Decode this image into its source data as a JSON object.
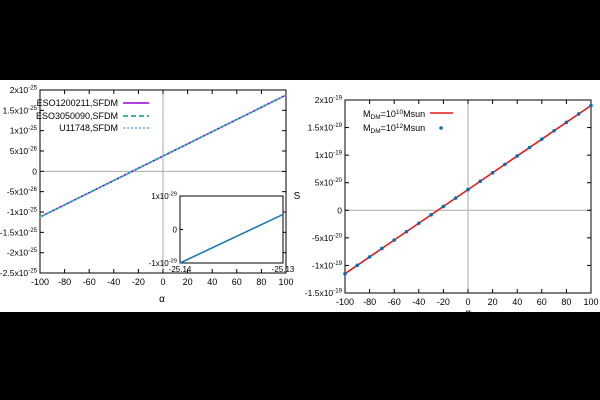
{
  "chart_data": [
    {
      "type": "line",
      "xlabel": "α",
      "ylabel": "",
      "xlim": [
        -100,
        100
      ],
      "ylim": [
        -2.5e-25,
        2e-25
      ],
      "xticks": [
        -100,
        -80,
        -60,
        -40,
        -20,
        0,
        20,
        40,
        60,
        80,
        100
      ],
      "xtick_labels": [
        "-100",
        "-80",
        "-60",
        "-40",
        "-20",
        "0",
        "20",
        "40",
        "60",
        "80",
        "100"
      ],
      "yticks": [
        -2.5e-25,
        -2e-25,
        -1.5e-25,
        -1e-25,
        -5e-26,
        0,
        5e-26,
        1e-25,
        1.5e-25,
        2e-25
      ],
      "ytick_labels": [
        "-2.5x10^-25",
        "-2x10^-25",
        "-1.5x10^-25",
        "-1x10^-25",
        "-5x10^-26",
        "0",
        "5x10^-26",
        "1x10^-25",
        "1.5x10^-25",
        "2x10^-25"
      ],
      "grid": false,
      "zero_lines": true,
      "legend_position": "top-left",
      "series": [
        {
          "name": "ESO1200211,SFDM",
          "style": "solid",
          "color": "#9400d3",
          "x": [
            -100,
            100
          ],
          "y": [
            -1.125e-25,
            1.875e-25
          ]
        },
        {
          "name": "ESO3050090,SFDM",
          "style": "dashed",
          "color": "#009e73",
          "x": [
            -100,
            100
          ],
          "y": [
            -1.125e-25,
            1.875e-25
          ]
        },
        {
          "name": "U11748,SFDM",
          "style": "dotted",
          "color": "#56b4e9",
          "x": [
            -100,
            100
          ],
          "y": [
            -1.125e-25,
            1.875e-25
          ]
        }
      ],
      "inset": {
        "xlim": [
          -25.14,
          -25.13
        ],
        "ylim": [
          -1e-29,
          1e-29
        ],
        "xtick_labels": [
          "-25.14",
          "-25.13"
        ],
        "ytick_labels": [
          "1x10^-29",
          "0",
          "-1x10^-29"
        ],
        "yticks": [
          1e-29,
          0,
          -1e-29
        ],
        "x": [
          -25.14,
          -25.13
        ],
        "y": [
          -1e-29,
          4.5e-30
        ]
      }
    },
    {
      "type": "line",
      "xlabel": "α",
      "ylabel": "S",
      "xlim": [
        -100,
        100
      ],
      "ylim": [
        -1.5e-19,
        2e-19
      ],
      "xticks": [
        -100,
        -80,
        -60,
        -40,
        -20,
        0,
        20,
        40,
        60,
        80,
        100
      ],
      "xtick_labels": [
        "-100",
        "-80",
        "-60",
        "-40",
        "-20",
        "0",
        "20",
        "40",
        "60",
        "80",
        "100"
      ],
      "yticks": [
        -1.5e-19,
        -1e-19,
        -5e-20,
        0,
        5e-20,
        1e-19,
        1.5e-19,
        2e-19
      ],
      "ytick_labels": [
        "-1.5x10^-19",
        "-1x10^-19",
        "-5x10^-20",
        "0",
        "5x10^-20",
        "1x10^-19",
        "1.5x10^-19",
        "2x10^-19"
      ],
      "grid": false,
      "zero_lines": true,
      "legend_position": "top-left",
      "series": [
        {
          "name": "M_DM=10^10 Msun",
          "style": "solid",
          "color": "#e41a1c",
          "x": [
            -100,
            100
          ],
          "y": [
            -1.15e-19,
            1.9e-19
          ]
        },
        {
          "name": "M_DM=10^12 Msun",
          "style": "points",
          "color": "#0072b2",
          "x": [
            -100,
            -90,
            -80,
            -70,
            -60,
            -50,
            -40,
            -30,
            -20,
            -10,
            0,
            10,
            20,
            30,
            40,
            50,
            60,
            70,
            80,
            90,
            100
          ],
          "y": [
            -1.15e-19,
            -9.975e-20,
            -8.45e-20,
            -6.925e-20,
            -5.4e-20,
            -3.875e-20,
            -2.35e-20,
            -8.25e-21,
            7e-21,
            2.225e-20,
            3.75e-20,
            5.275e-20,
            6.8e-20,
            8.325e-20,
            9.85e-20,
            1.1375e-19,
            1.29e-19,
            1.4425e-19,
            1.595e-19,
            1.7475e-19,
            1.9e-19
          ]
        }
      ]
    }
  ],
  "legends": {
    "left": [
      {
        "text": "ESO1200211,SFDM"
      },
      {
        "text": "ESO3050090,SFDM"
      },
      {
        "text": "U11748,SFDM"
      }
    ],
    "right": [
      {
        "base": "M",
        "sub": "DM",
        "mid": "=10",
        "sup": "10",
        "tail": "Msun"
      },
      {
        "base": "M",
        "sub": "DM",
        "mid": "=10",
        "sup": "12",
        "tail": "Msun"
      }
    ]
  }
}
